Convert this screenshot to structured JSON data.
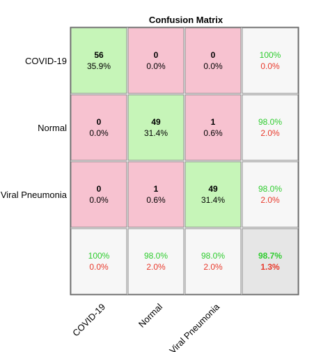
{
  "chart_data": {
    "type": "heatmap",
    "title": "Confusion Matrix",
    "row_labels": [
      "COVID-19",
      "Normal",
      "Viral Pneumonia"
    ],
    "col_labels": [
      "COVID-19",
      "Normal",
      "Viral Pneumonia"
    ],
    "cells": [
      [
        {
          "count": "56",
          "pct": "35.9%"
        },
        {
          "count": "0",
          "pct": "0.0%"
        },
        {
          "count": "0",
          "pct": "0.0%"
        }
      ],
      [
        {
          "count": "0",
          "pct": "0.0%"
        },
        {
          "count": "49",
          "pct": "31.4%"
        },
        {
          "count": "1",
          "pct": "0.6%"
        }
      ],
      [
        {
          "count": "0",
          "pct": "0.0%"
        },
        {
          "count": "1",
          "pct": "0.6%"
        },
        {
          "count": "49",
          "pct": "31.4%"
        }
      ]
    ],
    "counts": [
      [
        56,
        0,
        0
      ],
      [
        0,
        49,
        1
      ],
      [
        0,
        1,
        49
      ]
    ],
    "row_summary": [
      {
        "correct": "100%",
        "error": "0.0%"
      },
      {
        "correct": "98.0%",
        "error": "2.0%"
      },
      {
        "correct": "98.0%",
        "error": "2.0%"
      }
    ],
    "col_summary": [
      {
        "correct": "100%",
        "error": "0.0%"
      },
      {
        "correct": "98.0%",
        "error": "2.0%"
      },
      {
        "correct": "98.0%",
        "error": "2.0%"
      }
    ],
    "overall": {
      "correct": "98.7%",
      "error": "1.3%"
    },
    "colors": {
      "diagonal": "#c6f5b8",
      "off_diagonal": "#f7c2d0",
      "summary": "#f7f7f7",
      "overall": "#e6e6e6",
      "correct_text": "#2ecc2e",
      "error_text": "#e8392b",
      "grid_line": "#888888"
    }
  }
}
